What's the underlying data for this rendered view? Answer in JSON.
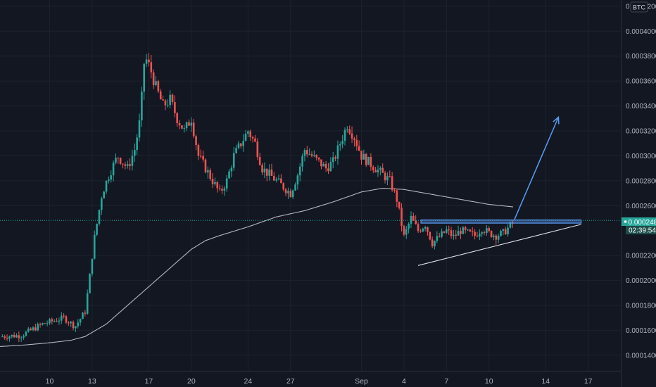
{
  "chart_data": {
    "type": "candlestick",
    "currency": "BTC",
    "last_price": "0.0002482",
    "countdown": "02:39:54",
    "colors": {
      "up": "#26a69a",
      "down": "#ef5350",
      "background": "#131722",
      "moving_average": "#d1d4dc",
      "annotation": "#5b9cf6",
      "trendline": "#e0e3eb",
      "label_bg": "#26a69a"
    },
    "y_axis": {
      "ticks": [
        "0.0004200",
        "0.0004000",
        "0.0003800",
        "0.0003600",
        "0.0003400",
        "0.0003200",
        "0.0003000",
        "0.0002800",
        "0.0002600",
        "0.0002200",
        "0.0002000",
        "0.0001800",
        "0.0001600",
        "0.0001400"
      ],
      "range": [
        0.0001275,
        0.000425
      ]
    },
    "x_axis": {
      "labels": [
        "10",
        "13",
        "17",
        "20",
        "24",
        "27",
        "Sep",
        "4",
        "7",
        "10",
        "14",
        "17"
      ],
      "label_days": [
        -22,
        -19,
        -15,
        -12,
        -8,
        -5,
        0,
        3,
        6,
        9,
        13,
        16
      ],
      "range_days": [
        -25.5,
        18.3
      ]
    },
    "price_keypoints": [
      [
        -25.5,
        0.000155
      ],
      [
        -24,
        0.000156
      ],
      [
        -22.5,
        0.000165
      ],
      [
        -21,
        0.00017
      ],
      [
        -20.2,
        0.000163
      ],
      [
        -19.5,
        0.000175
      ],
      [
        -19.2,
        0.0002
      ],
      [
        -18.9,
        0.00023
      ],
      [
        -18.6,
        0.00025
      ],
      [
        -18.3,
        0.00027
      ],
      [
        -17.8,
        0.000285
      ],
      [
        -17.2,
        0.0003
      ],
      [
        -16.5,
        0.00029
      ],
      [
        -16,
        0.000305
      ],
      [
        -15.6,
        0.00033
      ],
      [
        -15.3,
        0.00038
      ],
      [
        -14.9,
        0.00037
      ],
      [
        -14.5,
        0.000355
      ],
      [
        -14,
        0.00034
      ],
      [
        -13.5,
        0.000345
      ],
      [
        -13,
        0.00033
      ],
      [
        -12.5,
        0.00032
      ],
      [
        -12,
        0.00033
      ],
      [
        -11.5,
        0.0003
      ],
      [
        -11,
        0.00029
      ],
      [
        -10.5,
        0.00028
      ],
      [
        -10,
        0.00027
      ],
      [
        -9.5,
        0.00028
      ],
      [
        -9,
        0.0003
      ],
      [
        -8.5,
        0.00031
      ],
      [
        -8,
        0.00032
      ],
      [
        -7.5,
        0.00031
      ],
      [
        -7,
        0.00029
      ],
      [
        -6.5,
        0.000285
      ],
      [
        -6,
        0.00028
      ],
      [
        -5.5,
        0.000275
      ],
      [
        -5,
        0.00027
      ],
      [
        -4.5,
        0.000285
      ],
      [
        -4,
        0.000305
      ],
      [
        -3.5,
        0.0003
      ],
      [
        -3,
        0.000295
      ],
      [
        -2.5,
        0.00029
      ],
      [
        -2,
        0.000295
      ],
      [
        -1.5,
        0.00031
      ],
      [
        -1,
        0.000325
      ],
      [
        -0.5,
        0.000315
      ],
      [
        0,
        0.0003
      ],
      [
        0.5,
        0.000295
      ],
      [
        1,
        0.00029
      ],
      [
        1.5,
        0.000285
      ],
      [
        2,
        0.00028
      ],
      [
        2.5,
        0.000265
      ],
      [
        3,
        0.000235
      ],
      [
        3.5,
        0.00025
      ],
      [
        4,
        0.00024
      ],
      [
        4.5,
        0.000245
      ],
      [
        5,
        0.00023
      ],
      [
        5.5,
        0.000235
      ],
      [
        6,
        0.00024
      ],
      [
        6.5,
        0.000235
      ],
      [
        7,
        0.00024
      ],
      [
        7.5,
        0.000238
      ],
      [
        8,
        0.000236
      ],
      [
        8.5,
        0.000242
      ],
      [
        9,
        0.000238
      ],
      [
        9.5,
        0.000236
      ],
      [
        10,
        0.000238
      ],
      [
        10.7,
        0.000246
      ]
    ],
    "ma_keypoints": [
      [
        -25.5,
        0.000147
      ],
      [
        -24,
        0.000148
      ],
      [
        -22,
        0.00015
      ],
      [
        -20.5,
        0.000152
      ],
      [
        -19.5,
        0.000155
      ],
      [
        -18,
        0.000165
      ],
      [
        -16,
        0.000185
      ],
      [
        -14,
        0.000205
      ],
      [
        -12,
        0.000225
      ],
      [
        -11,
        0.000232
      ],
      [
        -10,
        0.000236
      ],
      [
        -8,
        0.000243
      ],
      [
        -6,
        0.000251
      ],
      [
        -4,
        0.000256
      ],
      [
        -2,
        0.000263
      ],
      [
        0,
        0.000271
      ],
      [
        1.5,
        0.000274
      ],
      [
        3,
        0.000273
      ],
      [
        5,
        0.000269
      ],
      [
        7,
        0.000265
      ],
      [
        9,
        0.000261
      ],
      [
        10.7,
        0.000259
      ]
    ],
    "annotations": {
      "resistance_band": {
        "x_start": 4.2,
        "x_end": 15.5,
        "y_low": 0.000246,
        "y_high": 0.0002485
      },
      "rising_trendline": {
        "x_start": 4.0,
        "x_end": 15.5,
        "y_start": 0.000212,
        "y_end": 0.000245
      },
      "projection_arrow": {
        "x_start": 10.8,
        "x_end": 13.9,
        "y_start": 0.000249,
        "y_end": 0.000331
      }
    }
  }
}
